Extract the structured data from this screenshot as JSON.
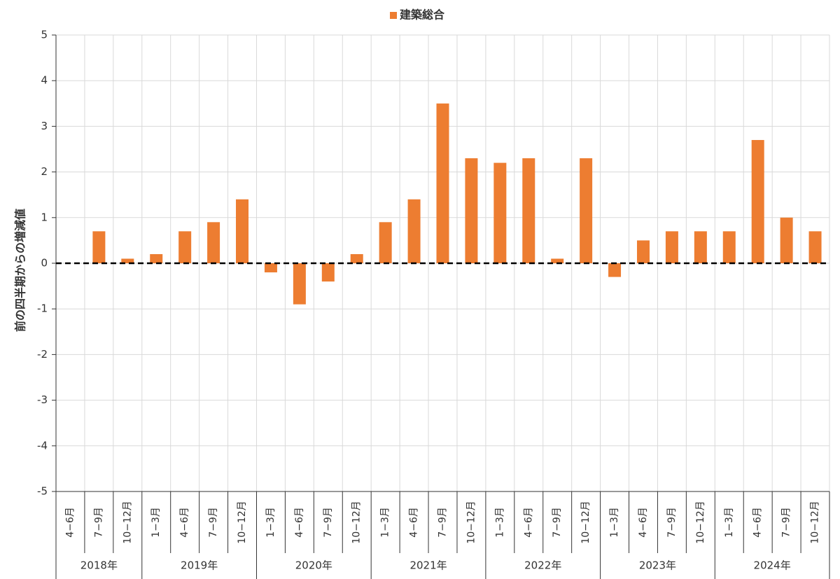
{
  "chart_data": {
    "type": "bar",
    "y_label": "前の四半期からの増減値",
    "category_groups": [
      {
        "label": "2018年",
        "categories": [
          "4−6月",
          "7−9月",
          "10−12月"
        ]
      },
      {
        "label": "2019年",
        "categories": [
          "1−3月",
          "4−6月",
          "7−9月",
          "10−12月"
        ]
      },
      {
        "label": "2020年",
        "categories": [
          "1−3月",
          "4−6月",
          "7−9月",
          "10−12月"
        ]
      },
      {
        "label": "2021年",
        "categories": [
          "1−3月",
          "4−6月",
          "7−9月",
          "10−12月"
        ]
      },
      {
        "label": "2022年",
        "categories": [
          "1−3月",
          "4−6月",
          "7−9月",
          "10−12月"
        ]
      },
      {
        "label": "2023年",
        "categories": [
          "1−3月",
          "4−6月",
          "7−9月",
          "10−12月"
        ]
      },
      {
        "label": "2024年",
        "categories": [
          "1−3月",
          "4−6月",
          "7−9月",
          "10−12月"
        ]
      }
    ],
    "series": [
      {
        "name": "建築総合",
        "color": "#ed7d31",
        "values": [
          0,
          0.7,
          0.1,
          0.2,
          0.7,
          0.9,
          1.4,
          -0.2,
          -0.9,
          -0.4,
          0.2,
          0.9,
          1.4,
          3.5,
          2.3,
          2.2,
          2.3,
          0.1,
          2.3,
          -0.3,
          0.5,
          0.7,
          0.7,
          0.7,
          2.7,
          1.0,
          0.7
        ]
      }
    ],
    "ylim": [
      -5,
      5
    ],
    "yticks": [
      -5,
      -4,
      -3,
      -2,
      -1,
      0,
      1,
      2,
      3,
      4,
      5
    ],
    "grid": true
  }
}
